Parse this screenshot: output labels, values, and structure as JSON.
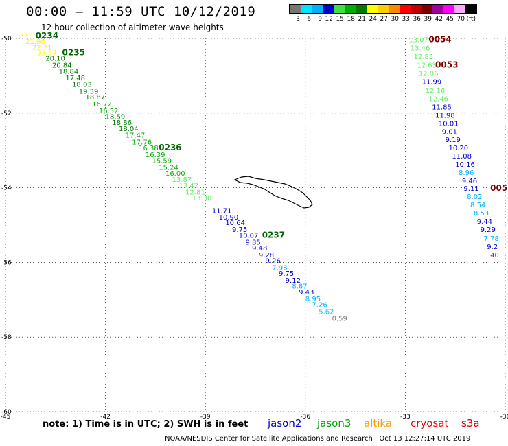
{
  "title": "00:00 – 11:59 UTC 10/12/2019",
  "subtitle": "12 hour collection of altimeter wave heights",
  "legend": {
    "colors": [
      "#777777",
      "#00e5ff",
      "#00b0ff",
      "#0000d0",
      "#40e040",
      "#00b000",
      "#007a00",
      "#ffff00",
      "#ffcc00",
      "#ff8800",
      "#ff0000",
      "#c00000",
      "#800000",
      "#a000a0",
      "#ff00ff",
      "#ffaaff",
      "#000000"
    ],
    "labels": [
      "3",
      "6",
      "9",
      "12",
      "15",
      "18",
      "21",
      "24",
      "27",
      "30",
      "33",
      "36",
      "39",
      "42",
      "45",
      "70",
      "(ft)"
    ]
  },
  "note": "note: 1) Time is in UTC; 2) SWH is in feet",
  "satellites": [
    {
      "name": "jason2",
      "color": "#0000d0"
    },
    {
      "name": "jason3",
      "color": "#00a000"
    },
    {
      "name": "altika",
      "color": "#ff9900"
    },
    {
      "name": "cryosat",
      "color": "#ff0000"
    },
    {
      "name": "s3a",
      "color": "#cc0000"
    }
  ],
  "credit": "NOAA/NESDIS Center for Satellite Applications and Research   Oct 13 12:27:14 UTC 2019",
  "chart_data": {
    "type": "scatter",
    "xlim": [
      -45,
      -30
    ],
    "ylim": [
      -60,
      -50
    ],
    "x_ticks": [
      "-45",
      "-42",
      "-39",
      "-36",
      "-33",
      "-30"
    ],
    "y_ticks": [
      "-50",
      "-52",
      "-54",
      "-56",
      "-58",
      "-60"
    ],
    "grid": true,
    "tracks": [
      {
        "points": [
          {
            "x": -44.6,
            "y": -50.0,
            "v": "22.13",
            "c": "#ffee00"
          },
          {
            "x": -44.4,
            "y": -50.15,
            "v": "21.98",
            "c": "#ffee00"
          },
          {
            "x": -44.2,
            "y": -50.3,
            "v": "22.71",
            "c": "#ffee00"
          },
          {
            "x": -44.05,
            "y": -50.45,
            "v": "23.57",
            "c": "#ffee00"
          },
          {
            "x": -43.8,
            "y": -50.6,
            "v": "20.10",
            "c": "#007a00"
          },
          {
            "x": -43.6,
            "y": -50.78,
            "v": "20.84",
            "c": "#007a00"
          },
          {
            "x": -43.4,
            "y": -50.95,
            "v": "18.84",
            "c": "#007a00"
          },
          {
            "x": -43.2,
            "y": -51.12,
            "v": "17.48",
            "c": "#007a00"
          },
          {
            "x": -43.0,
            "y": -51.3,
            "v": "18.03",
            "c": "#007a00"
          },
          {
            "x": -42.8,
            "y": -51.48,
            "v": "19.39",
            "c": "#007a00"
          },
          {
            "x": -42.6,
            "y": -51.64,
            "v": "18.87",
            "c": "#007a00"
          },
          {
            "x": -42.4,
            "y": -51.82,
            "v": "16.72",
            "c": "#00b000"
          },
          {
            "x": -42.2,
            "y": -52.0,
            "v": "16.52",
            "c": "#00b000"
          },
          {
            "x": -42.0,
            "y": -52.16,
            "v": "18.59",
            "c": "#007a00"
          },
          {
            "x": -41.8,
            "y": -52.32,
            "v": "18.86",
            "c": "#007a00"
          },
          {
            "x": -41.6,
            "y": -52.48,
            "v": "18.04",
            "c": "#007a00"
          },
          {
            "x": -41.4,
            "y": -52.66,
            "v": "17.47",
            "c": "#00b000"
          },
          {
            "x": -41.2,
            "y": -52.84,
            "v": "17.76",
            "c": "#00b000"
          },
          {
            "x": -41.0,
            "y": -53.0,
            "v": "16.38",
            "c": "#00b000"
          },
          {
            "x": -40.8,
            "y": -53.18,
            "v": "16.39",
            "c": "#00b000"
          },
          {
            "x": -40.6,
            "y": -53.34,
            "v": "15.59",
            "c": "#00b000"
          },
          {
            "x": -40.4,
            "y": -53.52,
            "v": "15.24",
            "c": "#00b000"
          },
          {
            "x": -40.2,
            "y": -53.68,
            "v": "16.00",
            "c": "#00b000"
          },
          {
            "x": -40.0,
            "y": -53.84,
            "v": "13.87",
            "c": "#66ee66"
          },
          {
            "x": -39.8,
            "y": -54.0,
            "v": "13.42",
            "c": "#66ee66"
          },
          {
            "x": -39.6,
            "y": -54.18,
            "v": "12.81",
            "c": "#66ee66"
          },
          {
            "x": -39.4,
            "y": -54.34,
            "v": "13.30",
            "c": "#66ee66"
          },
          {
            "x": -38.8,
            "y": -54.68,
            "v": "11.71",
            "c": "#0000d0"
          },
          {
            "x": -38.6,
            "y": -54.85,
            "v": "10.90",
            "c": "#0000d0"
          },
          {
            "x": -38.4,
            "y": -55.0,
            "v": "10.64",
            "c": "#0000d0"
          },
          {
            "x": -38.2,
            "y": -55.18,
            "v": "9.75",
            "c": "#0000d0"
          },
          {
            "x": -38.0,
            "y": -55.34,
            "v": "10.07",
            "c": "#0000d0"
          },
          {
            "x": -37.8,
            "y": -55.52,
            "v": "9.85",
            "c": "#0000d0"
          },
          {
            "x": -37.6,
            "y": -55.68,
            "v": "9.48",
            "c": "#0000d0"
          },
          {
            "x": -37.4,
            "y": -55.86,
            "v": "9.28",
            "c": "#0000d0"
          },
          {
            "x": -37.2,
            "y": -56.02,
            "v": "9.26",
            "c": "#0000d0"
          },
          {
            "x": -37.0,
            "y": -56.2,
            "v": "7.98",
            "c": "#00b0ff"
          },
          {
            "x": -36.8,
            "y": -56.36,
            "v": "9.75",
            "c": "#0000d0"
          },
          {
            "x": -36.6,
            "y": -56.54,
            "v": "9.12",
            "c": "#0000d0"
          },
          {
            "x": -36.4,
            "y": -56.7,
            "v": "8.87",
            "c": "#00b0ff"
          },
          {
            "x": -36.2,
            "y": -56.86,
            "v": "9.43",
            "c": "#0000d0"
          },
          {
            "x": -36.0,
            "y": -57.04,
            "v": "8.95",
            "c": "#00b0ff"
          },
          {
            "x": -35.8,
            "y": -57.2,
            "v": "7.26",
            "c": "#00b0ff"
          },
          {
            "x": -35.6,
            "y": -57.38,
            "v": "5.62",
            "c": "#00ccff"
          },
          {
            "x": -35.2,
            "y": -57.56,
            "v": "0.59",
            "c": "#777777"
          }
        ],
        "times": [
          {
            "x": -44.1,
            "y": -50.0,
            "t": "0234"
          },
          {
            "x": -43.3,
            "y": -50.45,
            "t": "0235"
          },
          {
            "x": -40.4,
            "y": -53.0,
            "t": "0236"
          },
          {
            "x": -37.3,
            "y": -55.34,
            "t": "0237"
          }
        ]
      },
      {
        "points": [
          {
            "x": -32.9,
            "y": -50.1,
            "v": "13.07",
            "c": "#66ee66"
          },
          {
            "x": -32.85,
            "y": -50.32,
            "v": "13.46",
            "c": "#66ee66"
          },
          {
            "x": -32.75,
            "y": -50.55,
            "v": "12.85",
            "c": "#66ee66"
          },
          {
            "x": -32.65,
            "y": -50.78,
            "v": "12.63",
            "c": "#66ee66"
          },
          {
            "x": -32.6,
            "y": -51.0,
            "v": "12.06",
            "c": "#66ee66"
          },
          {
            "x": -32.5,
            "y": -51.22,
            "v": "11.99",
            "c": "#0000d0"
          },
          {
            "x": -32.4,
            "y": -51.45,
            "v": "12.16",
            "c": "#66ee66"
          },
          {
            "x": -32.3,
            "y": -51.68,
            "v": "12.46",
            "c": "#66ee66"
          },
          {
            "x": -32.2,
            "y": -51.9,
            "v": "11.85",
            "c": "#0000d0"
          },
          {
            "x": -32.1,
            "y": -52.12,
            "v": "11.98",
            "c": "#0000d0"
          },
          {
            "x": -32.0,
            "y": -52.34,
            "v": "10.01",
            "c": "#0000d0"
          },
          {
            "x": -31.9,
            "y": -52.56,
            "v": "9.01",
            "c": "#0000d0"
          },
          {
            "x": -31.8,
            "y": -52.78,
            "v": "9.19",
            "c": "#0000d0"
          },
          {
            "x": -31.7,
            "y": -53.0,
            "v": "10.20",
            "c": "#0000d0"
          },
          {
            "x": -31.6,
            "y": -53.22,
            "v": "11.08",
            "c": "#0000d0"
          },
          {
            "x": -31.5,
            "y": -53.44,
            "v": "10.16",
            "c": "#0000d0"
          },
          {
            "x": -31.4,
            "y": -53.66,
            "v": "8.96",
            "c": "#00b0ff"
          },
          {
            "x": -31.3,
            "y": -53.88,
            "v": "9.46",
            "c": "#0000d0"
          },
          {
            "x": -31.25,
            "y": -54.08,
            "v": "9.11",
            "c": "#0000d0"
          },
          {
            "x": -31.15,
            "y": -54.3,
            "v": "8.02",
            "c": "#00b0ff"
          },
          {
            "x": -31.05,
            "y": -54.52,
            "v": "8.54",
            "c": "#00b0ff"
          },
          {
            "x": -30.95,
            "y": -54.74,
            "v": "8.53",
            "c": "#00b0ff"
          },
          {
            "x": -30.85,
            "y": -54.96,
            "v": "9.44",
            "c": "#0000d0"
          },
          {
            "x": -30.75,
            "y": -55.18,
            "v": "9.29",
            "c": "#0000d0"
          },
          {
            "x": -30.65,
            "y": -55.42,
            "v": "7.78",
            "c": "#00b0ff"
          },
          {
            "x": -30.55,
            "y": -55.64,
            "v": "9.2",
            "c": "#0000d0"
          },
          {
            "x": -30.45,
            "y": -55.86,
            "v": "40",
            "c": "#a000a0"
          }
        ],
        "times": [
          {
            "x": -32.3,
            "y": -50.1,
            "t": "0054"
          },
          {
            "x": -32.1,
            "y": -50.78,
            "t": "0053"
          },
          {
            "x": -30.45,
            "y": -54.08,
            "t": "005"
          }
        ]
      }
    ]
  }
}
